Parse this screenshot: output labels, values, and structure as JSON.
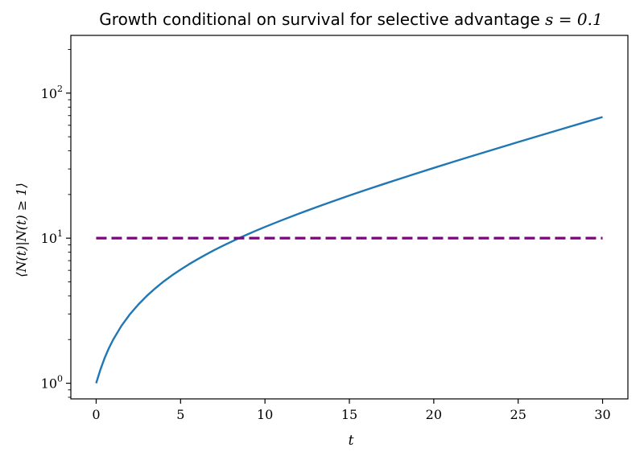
{
  "chart_data": {
    "type": "line",
    "title": "Growth conditional on survival for selective advantage s = 0.1",
    "title_prefix": "Growth conditional on survival for selective advantage ",
    "title_math": "s = 0.1",
    "xlabel": "t",
    "ylabel": "⟨N(t)|N(t) ≥ 1⟩",
    "x_scale": "linear",
    "y_scale": "log",
    "xlim": [
      -1.5,
      31.5
    ],
    "ylim": [
      0.78,
      250
    ],
    "x_ticks": [
      0,
      5,
      10,
      15,
      20,
      25,
      30
    ],
    "x_tick_labels": [
      "0",
      "5",
      "10",
      "15",
      "20",
      "25",
      "30"
    ],
    "y_ticks": [
      1,
      10,
      100
    ],
    "y_tick_labels": [
      {
        "base": "10",
        "exp": "0"
      },
      {
        "base": "10",
        "exp": "1"
      },
      {
        "base": "10",
        "exp": "2"
      }
    ],
    "grid": false,
    "legend": "none",
    "series": [
      {
        "style": "solid",
        "color": "#1f77b4",
        "x": [
          0,
          0.25,
          0.5,
          0.75,
          1,
          1.5,
          2,
          2.5,
          3,
          3.5,
          4,
          4.5,
          5,
          5.5,
          6,
          6.5,
          7,
          7.5,
          8,
          8.5,
          9,
          9.5,
          10,
          11,
          12,
          13,
          14,
          15,
          16,
          17,
          18,
          19,
          20,
          21,
          22,
          23,
          24,
          25,
          26,
          27,
          28,
          29,
          30
        ],
        "y": [
          1.0,
          1.24,
          1.49,
          1.74,
          1.99,
          2.49,
          2.99,
          3.49,
          4.0,
          4.51,
          5.03,
          5.55,
          6.07,
          6.61,
          7.15,
          7.71,
          8.28,
          8.85,
          9.44,
          10.05,
          10.66,
          11.3,
          11.95,
          13.3,
          14.74,
          16.28,
          17.92,
          19.67,
          21.54,
          23.55,
          25.7,
          28.01,
          30.49,
          33.15,
          36.02,
          39.09,
          42.41,
          45.97,
          49.81,
          53.96,
          58.43,
          63.24,
          68.42
        ]
      },
      {
        "style": "dashed",
        "color": "#800080",
        "x": [
          0,
          30
        ],
        "y": [
          10,
          10
        ]
      }
    ]
  }
}
